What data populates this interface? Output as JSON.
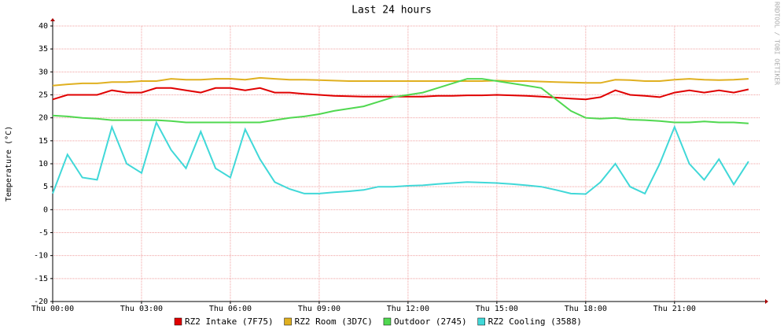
{
  "chart_data": {
    "type": "line",
    "title": "Last 24 hours",
    "y_label": "Temperature (°C)",
    "watermark": "RRDTOOL / TOBI OETIKER",
    "x": [
      0,
      0.5,
      1,
      1.5,
      2,
      2.5,
      3,
      3.5,
      4,
      4.5,
      5,
      5.5,
      6,
      6.5,
      7,
      7.5,
      8,
      8.5,
      9,
      9.5,
      10,
      10.5,
      11,
      11.5,
      12,
      12.5,
      13,
      13.5,
      14,
      14.5,
      15,
      15.5,
      16,
      16.5,
      17,
      17.5,
      18,
      18.5,
      19,
      19.5,
      20,
      20.5,
      21,
      21.5,
      22,
      22.5,
      23,
      23.5
    ],
    "xlim": [
      0,
      23.9
    ],
    "xticks": [
      {
        "value": 0,
        "label": "Thu 00:00"
      },
      {
        "value": 3,
        "label": "Thu 03:00"
      },
      {
        "value": 6,
        "label": "Thu 06:00"
      },
      {
        "value": 9,
        "label": "Thu 09:00"
      },
      {
        "value": 12,
        "label": "Thu 12:00"
      },
      {
        "value": 15,
        "label": "Thu 15:00"
      },
      {
        "value": 18,
        "label": "Thu 18:00"
      },
      {
        "value": 21,
        "label": "Thu 21:00"
      }
    ],
    "ylim": [
      -20,
      40
    ],
    "yticks": [
      -20,
      -15,
      -10,
      -5,
      0,
      5,
      10,
      15,
      20,
      25,
      30,
      35,
      40
    ],
    "grid": true,
    "series": [
      {
        "name": "RZ2 Intake (7F75)",
        "color": "#e00000",
        "values": [
          24,
          25,
          25,
          25,
          26,
          25.5,
          25.5,
          26.5,
          26.5,
          26,
          25.5,
          26.5,
          26.5,
          26,
          26.5,
          25.5,
          25.5,
          25.2,
          25,
          24.8,
          24.7,
          24.6,
          24.6,
          24.6,
          24.6,
          24.6,
          24.8,
          24.8,
          24.9,
          24.9,
          25,
          24.9,
          24.8,
          24.6,
          24.4,
          24.2,
          24,
          24.5,
          26,
          25,
          24.8,
          24.5,
          25.5,
          26,
          25.5,
          26,
          25.5,
          26.2
        ]
      },
      {
        "name": "RZ2 Room (3D7C)",
        "color": "#e0b020",
        "values": [
          27,
          27.3,
          27.5,
          27.5,
          27.8,
          27.8,
          28,
          28,
          28.5,
          28.3,
          28.3,
          28.5,
          28.5,
          28.3,
          28.7,
          28.5,
          28.3,
          28.3,
          28.2,
          28.1,
          28,
          28,
          28,
          28,
          28,
          28,
          28,
          28,
          28,
          28,
          28.1,
          28,
          28,
          27.9,
          27.8,
          27.7,
          27.6,
          27.6,
          28.3,
          28.2,
          28,
          28,
          28.3,
          28.5,
          28.3,
          28.2,
          28.3,
          28.5
        ]
      },
      {
        "name": "Outdoor (2745)",
        "color": "#50d850",
        "values": [
          20.5,
          20.3,
          20,
          19.8,
          19.5,
          19.5,
          19.5,
          19.5,
          19.3,
          19,
          19,
          19,
          19,
          19,
          19,
          19.5,
          20,
          20.3,
          20.8,
          21.5,
          22,
          22.5,
          23.5,
          24.5,
          25,
          25.5,
          26.5,
          27.5,
          28.5,
          28.5,
          28,
          27.5,
          27,
          26.5,
          24,
          21.5,
          20,
          19.8,
          20,
          19.6,
          19.5,
          19.3,
          19,
          19,
          19.2,
          19,
          19,
          18.8
        ]
      },
      {
        "name": "RZ2 Cooling (3588)",
        "color": "#40d8d8",
        "values": [
          3.5,
          12,
          7,
          6.5,
          18,
          10,
          8,
          19,
          13,
          9,
          17,
          9,
          7,
          17.5,
          11,
          6,
          4.5,
          3.5,
          3.5,
          3.8,
          4,
          4.3,
          5,
          5,
          5.2,
          5.3,
          5.6,
          5.8,
          6,
          5.9,
          5.8,
          5.6,
          5.3,
          5,
          4.3,
          3.5,
          3.4,
          6,
          10,
          5,
          3.5,
          10,
          18,
          10,
          6.5,
          11,
          5.5,
          10.5
        ]
      }
    ]
  }
}
